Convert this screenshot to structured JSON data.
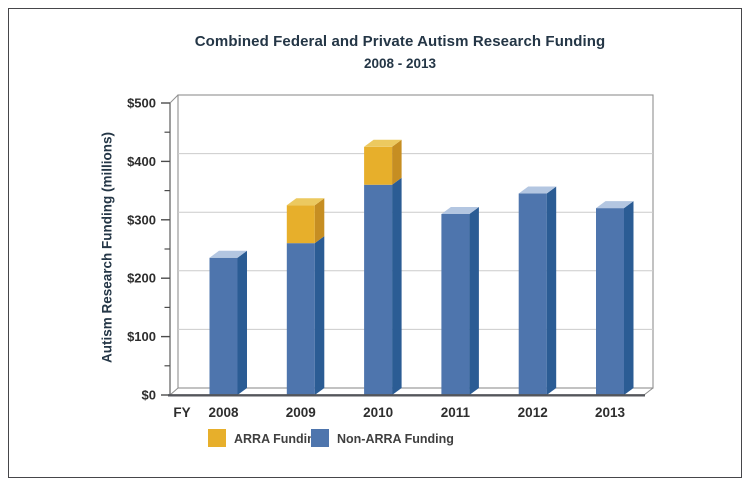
{
  "chart_data": {
    "type": "bar",
    "stacked": true,
    "style": "pseudo-3d",
    "title": "Combined Federal and Private Autism Research Funding",
    "subtitle": "2008 - 2013",
    "ylabel": "Autism Research Funding (millions)",
    "xlabel_prefix": "FY",
    "categories": [
      "2008",
      "2009",
      "2010",
      "2011",
      "2012",
      "2013"
    ],
    "series": [
      {
        "name": "Non-ARRA Funding",
        "color": "#4e75ad",
        "color_side": "#2b5c94",
        "color_top": "#b3c6e1",
        "values": [
          235,
          260,
          360,
          310,
          345,
          320
        ]
      },
      {
        "name": "ARRA Funding",
        "color": "#e7af2b",
        "color_side": "#c68e22",
        "color_top": "#ecc95f",
        "values": [
          0,
          65,
          65,
          0,
          0,
          0
        ]
      }
    ],
    "ylim": [
      0,
      500
    ],
    "ytick_step": 100,
    "ytick_minor_step": 50,
    "ytick_labels": [
      "$0",
      "$100",
      "$200",
      "$300",
      "$400",
      "$500"
    ],
    "grid": true,
    "legend_position": "bottom",
    "legend": [
      {
        "label": "ARRA Funding",
        "color": "#e7af2b"
      },
      {
        "label": "Non-ARRA Funding",
        "color": "#4e75ad"
      }
    ]
  }
}
